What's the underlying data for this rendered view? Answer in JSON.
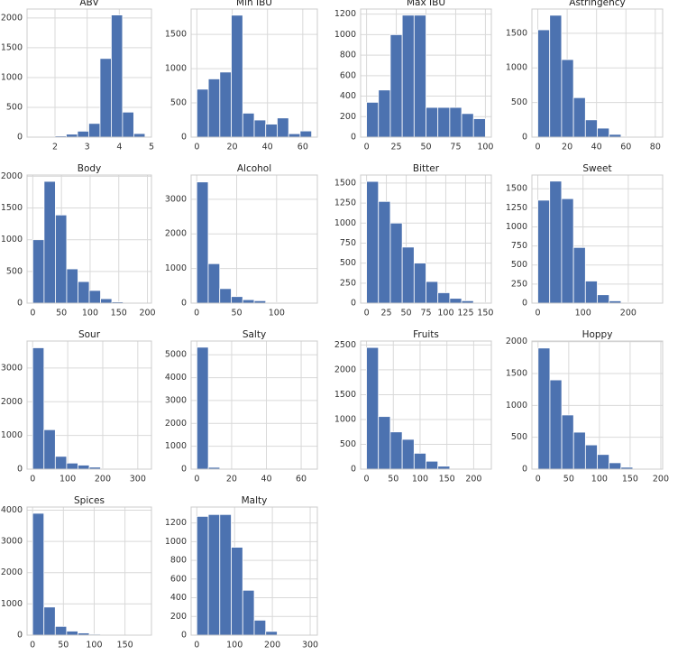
{
  "chart_data": [
    {
      "type": "histogram",
      "title": "ABV",
      "bins": [
        1.3,
        1.65,
        2.0,
        2.35,
        2.7,
        3.05,
        3.4,
        3.75,
        4.1,
        4.45,
        4.8
      ],
      "values": [
        2,
        5,
        20,
        50,
        100,
        230,
        1320,
        2050,
        420,
        60
      ],
      "color": "#4c72b0",
      "xlim": [
        1.13,
        5.0
      ],
      "ylim": [
        0,
        2150
      ],
      "xticks": [
        2,
        3,
        4,
        5
      ],
      "yticks": [
        0,
        500,
        1000,
        1500,
        2000
      ],
      "grid": true
    },
    {
      "type": "histogram",
      "title": "Min IBU",
      "bins": [
        0,
        6.5,
        13,
        19.5,
        26,
        32.5,
        39,
        45.5,
        52,
        58.5,
        65
      ],
      "values": [
        700,
        850,
        950,
        1780,
        350,
        250,
        190,
        280,
        50,
        90
      ],
      "color": "#4c72b0",
      "xlim": [
        -3.25,
        68.25
      ],
      "ylim": [
        0,
        1870
      ],
      "xticks": [
        0,
        20,
        40,
        60
      ],
      "yticks": [
        0,
        500,
        1000,
        1500
      ],
      "grid": true
    },
    {
      "type": "histogram",
      "title": "Max IBU",
      "bins": [
        0,
        10,
        20,
        30,
        40,
        50,
        60,
        70,
        80,
        90,
        100
      ],
      "values": [
        340,
        460,
        1000,
        1190,
        1190,
        290,
        290,
        290,
        230,
        180
      ],
      "color": "#4c72b0",
      "xlim": [
        -5,
        105
      ],
      "ylim": [
        0,
        1250
      ],
      "xticks": [
        0,
        25,
        50,
        75,
        100
      ],
      "yticks": [
        0,
        200,
        400,
        600,
        800,
        1000,
        1200
      ],
      "grid": true
    },
    {
      "type": "histogram",
      "title": "Astringency",
      "bins": [
        0,
        8.1,
        16.2,
        24.3,
        32.4,
        40.5,
        48.6,
        56.7,
        64.8,
        72.9,
        81
      ],
      "values": [
        1550,
        1760,
        1120,
        570,
        250,
        130,
        40,
        10,
        3,
        1
      ],
      "color": "#4c72b0",
      "xlim": [
        -4,
        85
      ],
      "ylim": [
        0,
        1850
      ],
      "xticks": [
        0,
        20,
        40,
        60,
        80
      ],
      "yticks": [
        0,
        500,
        1000,
        1500
      ],
      "grid": true
    },
    {
      "type": "histogram",
      "title": "Body",
      "bins": [
        0,
        19.7,
        39.4,
        59.1,
        78.8,
        98.5,
        118.2,
        137.9,
        157.6,
        177.3,
        197
      ],
      "values": [
        1000,
        1920,
        1390,
        540,
        340,
        200,
        70,
        20,
        5,
        2
      ],
      "color": "#4c72b0",
      "xlim": [
        -10,
        207
      ],
      "ylim": [
        0,
        2020
      ],
      "xticks": [
        0,
        50,
        100,
        150,
        200
      ],
      "yticks": [
        0,
        500,
        1000,
        1500,
        2000
      ],
      "grid": true
    },
    {
      "type": "histogram",
      "title": "Alcohol",
      "bins": [
        0,
        14.4,
        28.8,
        43.2,
        57.6,
        72,
        86.4,
        100.8,
        115.2,
        129.6,
        144
      ],
      "values": [
        3500,
        1140,
        420,
        190,
        100,
        70,
        20,
        5,
        3,
        1
      ],
      "color": "#4c72b0",
      "xlim": [
        -7,
        151
      ],
      "ylim": [
        0,
        3700
      ],
      "xticks": [
        0,
        50,
        100
      ],
      "yticks": [
        0,
        1000,
        2000,
        3000
      ],
      "grid": true
    },
    {
      "type": "histogram",
      "title": "Bitter",
      "bins": [
        0,
        15,
        30,
        45,
        60,
        75,
        90,
        105,
        120,
        135,
        150
      ],
      "values": [
        1520,
        1270,
        1000,
        700,
        500,
        270,
        130,
        60,
        30,
        10
      ],
      "color": "#4c72b0",
      "xlim": [
        -7.5,
        157.5
      ],
      "ylim": [
        0,
        1600
      ],
      "xticks": [
        0,
        25,
        50,
        75,
        100,
        125,
        150
      ],
      "yticks": [
        0,
        250,
        500,
        750,
        1000,
        1250,
        1500
      ],
      "grid": true
    },
    {
      "type": "histogram",
      "title": "Sweet",
      "bins": [
        0,
        26.3,
        52.6,
        78.9,
        105.2,
        131.5,
        157.8,
        184.1,
        210.4,
        236.7,
        263
      ],
      "values": [
        1350,
        1600,
        1370,
        730,
        290,
        110,
        30,
        10,
        3,
        1
      ],
      "color": "#4c72b0",
      "xlim": [
        -13,
        276
      ],
      "ylim": [
        0,
        1680
      ],
      "xticks": [
        0,
        100,
        200
      ],
      "yticks": [
        0,
        250,
        500,
        750,
        1000,
        1250,
        1500
      ],
      "grid": true
    },
    {
      "type": "histogram",
      "title": "Sour",
      "bins": [
        0,
        32.3,
        64.6,
        96.9,
        129.2,
        161.5,
        193.8,
        226.1,
        258.4,
        290.7,
        323
      ],
      "values": [
        3600,
        1170,
        380,
        180,
        120,
        60,
        15,
        5,
        2,
        1
      ],
      "color": "#4c72b0",
      "xlim": [
        -16,
        339
      ],
      "ylim": [
        0,
        3800
      ],
      "xticks": [
        0,
        100,
        200,
        300
      ],
      "yticks": [
        0,
        1000,
        2000,
        3000
      ],
      "grid": true
    },
    {
      "type": "histogram",
      "title": "Salty",
      "bins": [
        0,
        6.6,
        13.2,
        19.8,
        26.4,
        33,
        39.6,
        46.2,
        52.8,
        59.4,
        66
      ],
      "values": [
        5330,
        80,
        5,
        2,
        1,
        0,
        0,
        0,
        0,
        1
      ],
      "color": "#4c72b0",
      "xlim": [
        -3.3,
        69.3
      ],
      "ylim": [
        0,
        5600
      ],
      "xticks": [
        0,
        20,
        40,
        60
      ],
      "yticks": [
        0,
        1000,
        2000,
        3000,
        4000,
        5000
      ],
      "grid": true
    },
    {
      "type": "histogram",
      "title": "Fruits",
      "bins": [
        0,
        22.2,
        44.4,
        66.6,
        88.8,
        111,
        133.2,
        155.4,
        177.6,
        199.8,
        222
      ],
      "values": [
        2450,
        1060,
        750,
        600,
        320,
        160,
        60,
        15,
        5,
        2
      ],
      "color": "#4c72b0",
      "xlim": [
        -11,
        233
      ],
      "ylim": [
        0,
        2580
      ],
      "xticks": [
        0,
        50,
        100,
        150,
        200
      ],
      "yticks": [
        0,
        500,
        1000,
        1500,
        2000,
        2500
      ],
      "grid": true
    },
    {
      "type": "histogram",
      "title": "Hoppy",
      "bins": [
        0,
        19.3,
        38.6,
        57.9,
        77.2,
        96.5,
        115.8,
        135.1,
        154.4,
        173.7,
        193
      ],
      "values": [
        1900,
        1400,
        850,
        580,
        380,
        230,
        100,
        30,
        5,
        2
      ],
      "color": "#4c72b0",
      "xlim": [
        -10,
        203
      ],
      "ylim": [
        0,
        2010
      ],
      "xticks": [
        0,
        50,
        100,
        150,
        200
      ],
      "yticks": [
        0,
        500,
        1000,
        1500,
        2000
      ],
      "grid": true
    },
    {
      "type": "histogram",
      "title": "Spices",
      "bins": [
        0,
        18.4,
        36.8,
        55.2,
        73.6,
        92,
        110.4,
        128.8,
        147.2,
        165.6,
        184
      ],
      "values": [
        3900,
        900,
        280,
        130,
        70,
        30,
        10,
        5,
        2,
        1
      ],
      "color": "#4c72b0",
      "xlim": [
        -9,
        193
      ],
      "ylim": [
        0,
        4100
      ],
      "xticks": [
        0,
        50,
        100,
        150
      ],
      "yticks": [
        0,
        1000,
        2000,
        3000,
        4000
      ],
      "grid": true
    },
    {
      "type": "histogram",
      "title": "Malty",
      "bins": [
        0,
        30.4,
        60.8,
        91.2,
        121.6,
        152,
        182.4,
        212.8,
        243.2,
        273.6,
        304
      ],
      "values": [
        1270,
        1290,
        1290,
        940,
        480,
        160,
        40,
        5,
        2,
        1
      ],
      "color": "#4c72b0",
      "xlim": [
        -15,
        319
      ],
      "ylim": [
        0,
        1370
      ],
      "xticks": [
        0,
        100,
        200,
        300
      ],
      "yticks": [
        0,
        200,
        400,
        600,
        800,
        1000,
        1200
      ],
      "grid": true
    }
  ]
}
